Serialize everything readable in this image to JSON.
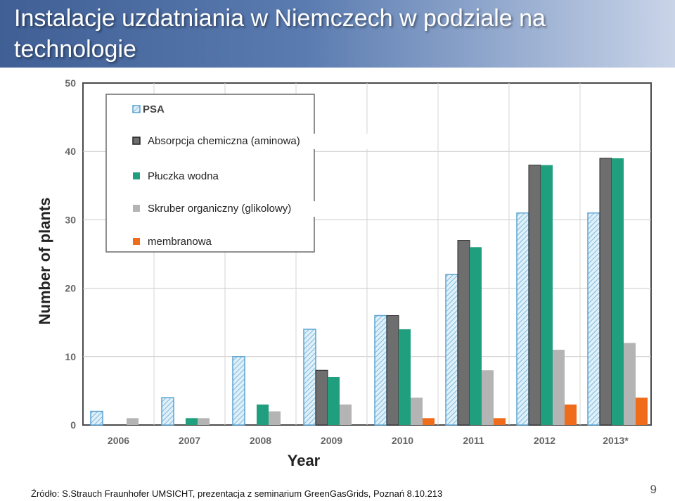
{
  "slide": {
    "title": "Instalacje uzdatniania w Niemczech w podziale na technologie",
    "source": "Źródło: S.Strauch Fraunhofer UMSICHT, prezentacja z seminarium GreenGasGrids, Poznań 8.10.213",
    "page_number": "9"
  },
  "chart_data": {
    "type": "bar",
    "xlabel": "Year",
    "ylabel": "Number of plants",
    "ylim": [
      0,
      50
    ],
    "yticks": [
      0,
      10,
      20,
      30,
      40,
      50
    ],
    "grid": true,
    "legend_position": "top-left",
    "categories": [
      "2006",
      "2007",
      "2008",
      "2009",
      "2010",
      "2011",
      "2012",
      "2013*"
    ],
    "series": [
      {
        "name": "PSA",
        "color": "#a9d6ee",
        "hatched": true,
        "legend_bold": true,
        "values": [
          2,
          4,
          10,
          14,
          16,
          22,
          31,
          31
        ]
      },
      {
        "name": "Absorpcja chemiczna (aminowa)",
        "color": "#6e6e6e",
        "hatched": false,
        "legend_bold": false,
        "values": [
          0,
          0,
          0,
          8,
          16,
          27,
          38,
          39
        ]
      },
      {
        "name": "Płuczka wodna",
        "color": "#1f9f7e",
        "hatched": false,
        "legend_bold": false,
        "values": [
          0,
          1,
          3,
          7,
          14,
          26,
          38,
          39
        ]
      },
      {
        "name": "Skruber organiczny (glikolowy)",
        "color": "#b4b4b4",
        "hatched": false,
        "legend_bold": false,
        "values": [
          1,
          1,
          2,
          3,
          4,
          8,
          11,
          12
        ]
      },
      {
        "name": "membranowa",
        "color": "#ef6c1a",
        "hatched": false,
        "legend_bold": false,
        "values": [
          0,
          0,
          0,
          0,
          1,
          1,
          3,
          4
        ]
      }
    ]
  }
}
